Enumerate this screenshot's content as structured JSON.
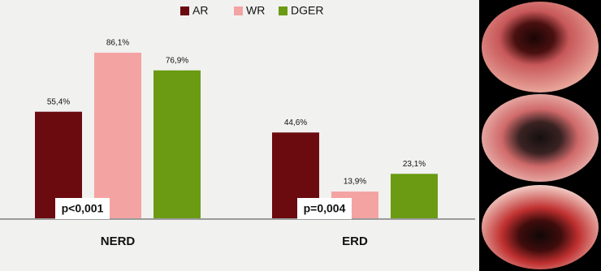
{
  "chart_data": {
    "type": "bar",
    "categories": [
      "NERD",
      "ERD"
    ],
    "series": [
      {
        "name": "AR",
        "color": "#6b0b10",
        "values": [
          55.4,
          44.6
        ],
        "value_labels": [
          "55,4%",
          "44,6%"
        ]
      },
      {
        "name": "WR",
        "color": "#f4a3a3",
        "values": [
          86.1,
          13.9
        ],
        "value_labels": [
          "86,1%",
          "13,9%"
        ]
      },
      {
        "name": "DGER",
        "color": "#6a9b12",
        "values": [
          76.9,
          23.1
        ],
        "value_labels": [
          "76,9%",
          "23,1%"
        ]
      }
    ],
    "annotations": [
      "p<0,001",
      "p=0,004"
    ]
  }
}
